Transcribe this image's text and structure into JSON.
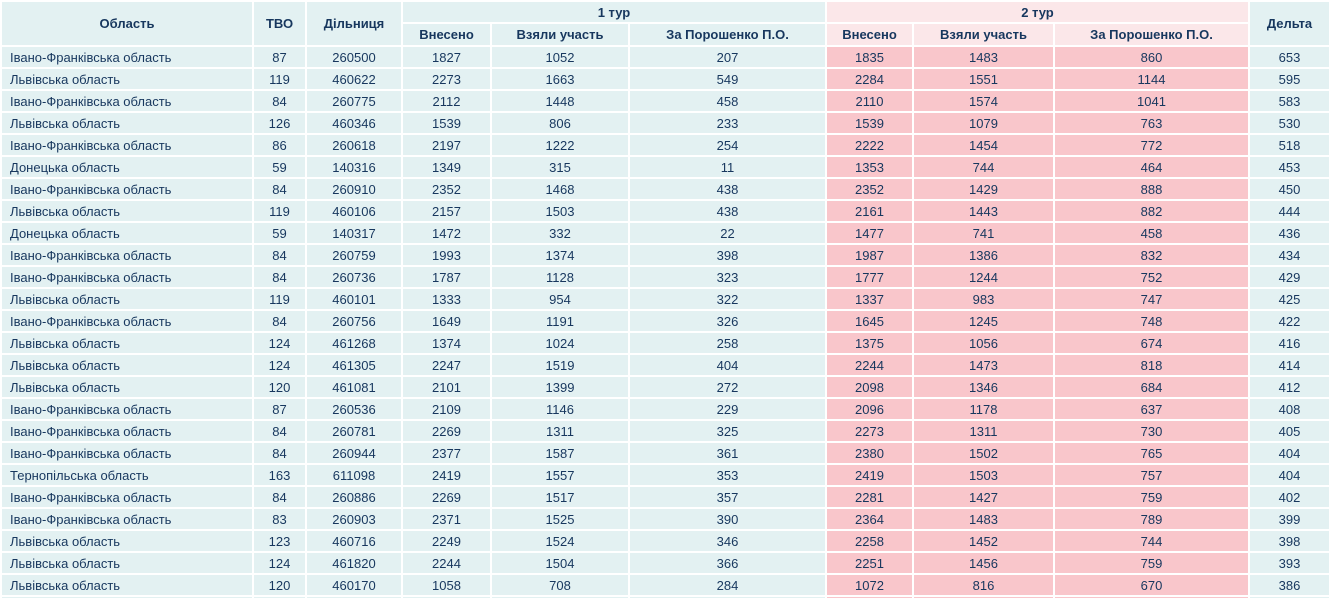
{
  "table": {
    "header": {
      "oblast": "Область",
      "tvo": "ТВО",
      "dilnytsia": "Дільниця",
      "round1": "1 тур",
      "round2": "2 тур",
      "delta": "Дельта",
      "sub_round1": [
        "Внесено",
        "Взяли участь",
        "За Порошенко П.О."
      ],
      "sub_round2": [
        "Внесено",
        "Взяли участь",
        "За Порошенко П.О."
      ]
    },
    "rows": [
      [
        "Івано-Франківська область",
        "87",
        "260500",
        "1827",
        "1052",
        "207",
        "1835",
        "1483",
        "860",
        "653"
      ],
      [
        "Львівська область",
        "119",
        "460622",
        "2273",
        "1663",
        "549",
        "2284",
        "1551",
        "1144",
        "595"
      ],
      [
        "Івано-Франківська область",
        "84",
        "260775",
        "2112",
        "1448",
        "458",
        "2110",
        "1574",
        "1041",
        "583"
      ],
      [
        "Львівська область",
        "126",
        "460346",
        "1539",
        "806",
        "233",
        "1539",
        "1079",
        "763",
        "530"
      ],
      [
        "Івано-Франківська область",
        "86",
        "260618",
        "2197",
        "1222",
        "254",
        "2222",
        "1454",
        "772",
        "518"
      ],
      [
        "Донецька область",
        "59",
        "140316",
        "1349",
        "315",
        "11",
        "1353",
        "744",
        "464",
        "453"
      ],
      [
        "Івано-Франківська область",
        "84",
        "260910",
        "2352",
        "1468",
        "438",
        "2352",
        "1429",
        "888",
        "450"
      ],
      [
        "Львівська область",
        "119",
        "460106",
        "2157",
        "1503",
        "438",
        "2161",
        "1443",
        "882",
        "444"
      ],
      [
        "Донецька область",
        "59",
        "140317",
        "1472",
        "332",
        "22",
        "1477",
        "741",
        "458",
        "436"
      ],
      [
        "Івано-Франківська область",
        "84",
        "260759",
        "1993",
        "1374",
        "398",
        "1987",
        "1386",
        "832",
        "434"
      ],
      [
        "Івано-Франківська область",
        "84",
        "260736",
        "1787",
        "1128",
        "323",
        "1777",
        "1244",
        "752",
        "429"
      ],
      [
        "Львівська область",
        "119",
        "460101",
        "1333",
        "954",
        "322",
        "1337",
        "983",
        "747",
        "425"
      ],
      [
        "Івано-Франківська область",
        "84",
        "260756",
        "1649",
        "1191",
        "326",
        "1645",
        "1245",
        "748",
        "422"
      ],
      [
        "Львівська область",
        "124",
        "461268",
        "1374",
        "1024",
        "258",
        "1375",
        "1056",
        "674",
        "416"
      ],
      [
        "Львівська область",
        "124",
        "461305",
        "2247",
        "1519",
        "404",
        "2244",
        "1473",
        "818",
        "414"
      ],
      [
        "Львівська область",
        "120",
        "461081",
        "2101",
        "1399",
        "272",
        "2098",
        "1346",
        "684",
        "412"
      ],
      [
        "Івано-Франківська область",
        "87",
        "260536",
        "2109",
        "1146",
        "229",
        "2096",
        "1178",
        "637",
        "408"
      ],
      [
        "Івано-Франківська область",
        "84",
        "260781",
        "2269",
        "1311",
        "325",
        "2273",
        "1311",
        "730",
        "405"
      ],
      [
        "Івано-Франківська область",
        "84",
        "260944",
        "2377",
        "1587",
        "361",
        "2380",
        "1502",
        "765",
        "404"
      ],
      [
        "Тернопільська область",
        "163",
        "611098",
        "2419",
        "1557",
        "353",
        "2419",
        "1503",
        "757",
        "404"
      ],
      [
        "Івано-Франківська область",
        "84",
        "260886",
        "2269",
        "1517",
        "357",
        "2281",
        "1427",
        "759",
        "402"
      ],
      [
        "Івано-Франківська область",
        "83",
        "260903",
        "2371",
        "1525",
        "390",
        "2364",
        "1483",
        "789",
        "399"
      ],
      [
        "Львівська область",
        "123",
        "460716",
        "2249",
        "1524",
        "346",
        "2258",
        "1452",
        "744",
        "398"
      ],
      [
        "Львівська область",
        "124",
        "461820",
        "2244",
        "1504",
        "366",
        "2251",
        "1456",
        "759",
        "393"
      ],
      [
        "Львівська область",
        "120",
        "460170",
        "1058",
        "708",
        "284",
        "1072",
        "816",
        "670",
        "386"
      ]
    ]
  },
  "colors": {
    "cell_bg": "#E3F1F2",
    "round2_cell_bg": "#F9C6CB",
    "round2_header_bg": "#FBE7E9",
    "text": "#17375E",
    "gap": "#FFFFFF"
  }
}
